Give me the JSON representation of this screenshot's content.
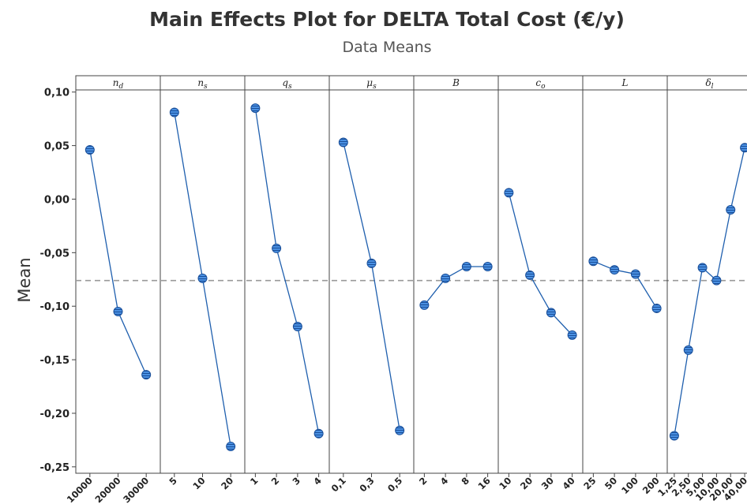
{
  "chart_data": {
    "type": "line",
    "title": "Main Effects Plot for DELTA Total Cost (€/y)",
    "subtitle": "Data Means",
    "y_label": "Mean",
    "color": "#1f5fae",
    "marker_color": "#3b82d6",
    "reference_line": -0.076,
    "ylim": [
      -0.256,
      0.102
    ],
    "yticks": [
      {
        "value": 0.1,
        "label": "0,10"
      },
      {
        "value": 0.05,
        "label": "0,05"
      },
      {
        "value": 0,
        "label": "0,00"
      },
      {
        "value": -0.05,
        "label": "-0,05"
      },
      {
        "value": -0.1,
        "label": "-0,10"
      },
      {
        "value": -0.15,
        "label": "-0,15"
      },
      {
        "value": -0.2,
        "label": "-0,20"
      },
      {
        "value": -0.25,
        "label": "-0,25"
      }
    ],
    "panels": [
      {
        "name": {
          "symbol": "n",
          "subscript": "d"
        },
        "categories": [
          "10000",
          "20000",
          "30000"
        ],
        "values": [
          0.046,
          -0.105,
          -0.164
        ]
      },
      {
        "name": {
          "symbol": "n",
          "subscript": "s"
        },
        "categories": [
          "5",
          "10",
          "20"
        ],
        "values": [
          0.081,
          -0.074,
          -0.231
        ]
      },
      {
        "name": {
          "symbol": "q",
          "subscript": "s"
        },
        "categories": [
          "1",
          "2",
          "3",
          "4"
        ],
        "values": [
          0.085,
          -0.046,
          -0.119,
          -0.219
        ]
      },
      {
        "name": {
          "symbol": "μ",
          "subscript": "s"
        },
        "categories": [
          "0,1",
          "0,3",
          "0,5"
        ],
        "values": [
          0.053,
          -0.06,
          -0.216
        ]
      },
      {
        "name": {
          "symbol": "B"
        },
        "categories": [
          "2",
          "4",
          "8",
          "16"
        ],
        "values": [
          -0.099,
          -0.074,
          -0.063,
          -0.063
        ]
      },
      {
        "name": {
          "symbol": "c",
          "subscript": "o"
        },
        "categories": [
          "10",
          "20",
          "30",
          "40"
        ],
        "values": [
          0.006,
          -0.071,
          -0.106,
          -0.127
        ]
      },
      {
        "name": {
          "symbol": "L"
        },
        "categories": [
          "25",
          "50",
          "100",
          "200"
        ],
        "values": [
          -0.058,
          -0.066,
          -0.07,
          -0.102
        ]
      },
      {
        "name": {
          "symbol": "δ",
          "subscript": "l"
        },
        "categories": [
          "1,25",
          "2,50",
          "5,00",
          "10,00",
          "20,00",
          "40,00"
        ],
        "values": [
          -0.221,
          -0.141,
          -0.064,
          -0.076,
          -0.01,
          0.048
        ]
      }
    ]
  }
}
